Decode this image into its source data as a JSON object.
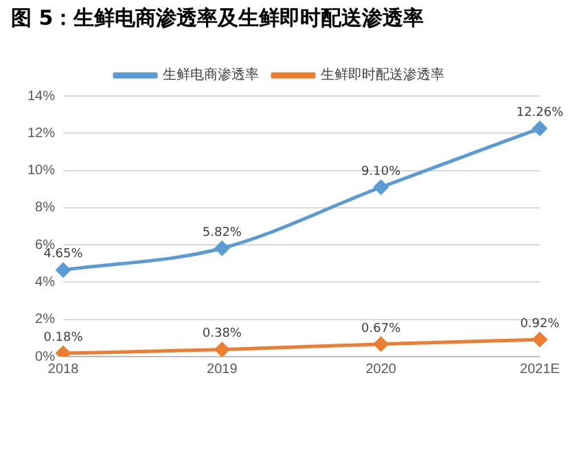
{
  "chart_data": {
    "type": "line",
    "title": "图 5：生鲜电商渗透率及生鲜即时配送渗透率",
    "categories": [
      "2018",
      "2019",
      "2020",
      "2021E"
    ],
    "series": [
      {
        "name": "生鲜电商渗透率",
        "color": "#5b9bd5",
        "values": [
          4.65,
          5.82,
          9.1,
          12.26
        ],
        "value_labels": [
          "4.65%",
          "5.82%",
          "9.10%",
          "12.26%"
        ]
      },
      {
        "name": "生鲜即时配送渗透率",
        "color": "#ed7d31",
        "values": [
          0.18,
          0.38,
          0.67,
          0.92
        ],
        "value_labels": [
          "0.18%",
          "0.38%",
          "0.67%",
          "0.92%"
        ]
      }
    ],
    "ylim": [
      0,
      14
    ],
    "yticks": [
      {
        "value": 0,
        "label": "0%"
      },
      {
        "value": 2,
        "label": "2%"
      },
      {
        "value": 4,
        "label": "4%"
      },
      {
        "value": 6,
        "label": "6%"
      },
      {
        "value": 8,
        "label": "8%"
      },
      {
        "value": 10,
        "label": "10%"
      },
      {
        "value": 12,
        "label": "12%"
      },
      {
        "value": 14,
        "label": "14%"
      }
    ],
    "grid": "y",
    "legend": "top",
    "marker": "diamond",
    "line_style": "solid"
  }
}
